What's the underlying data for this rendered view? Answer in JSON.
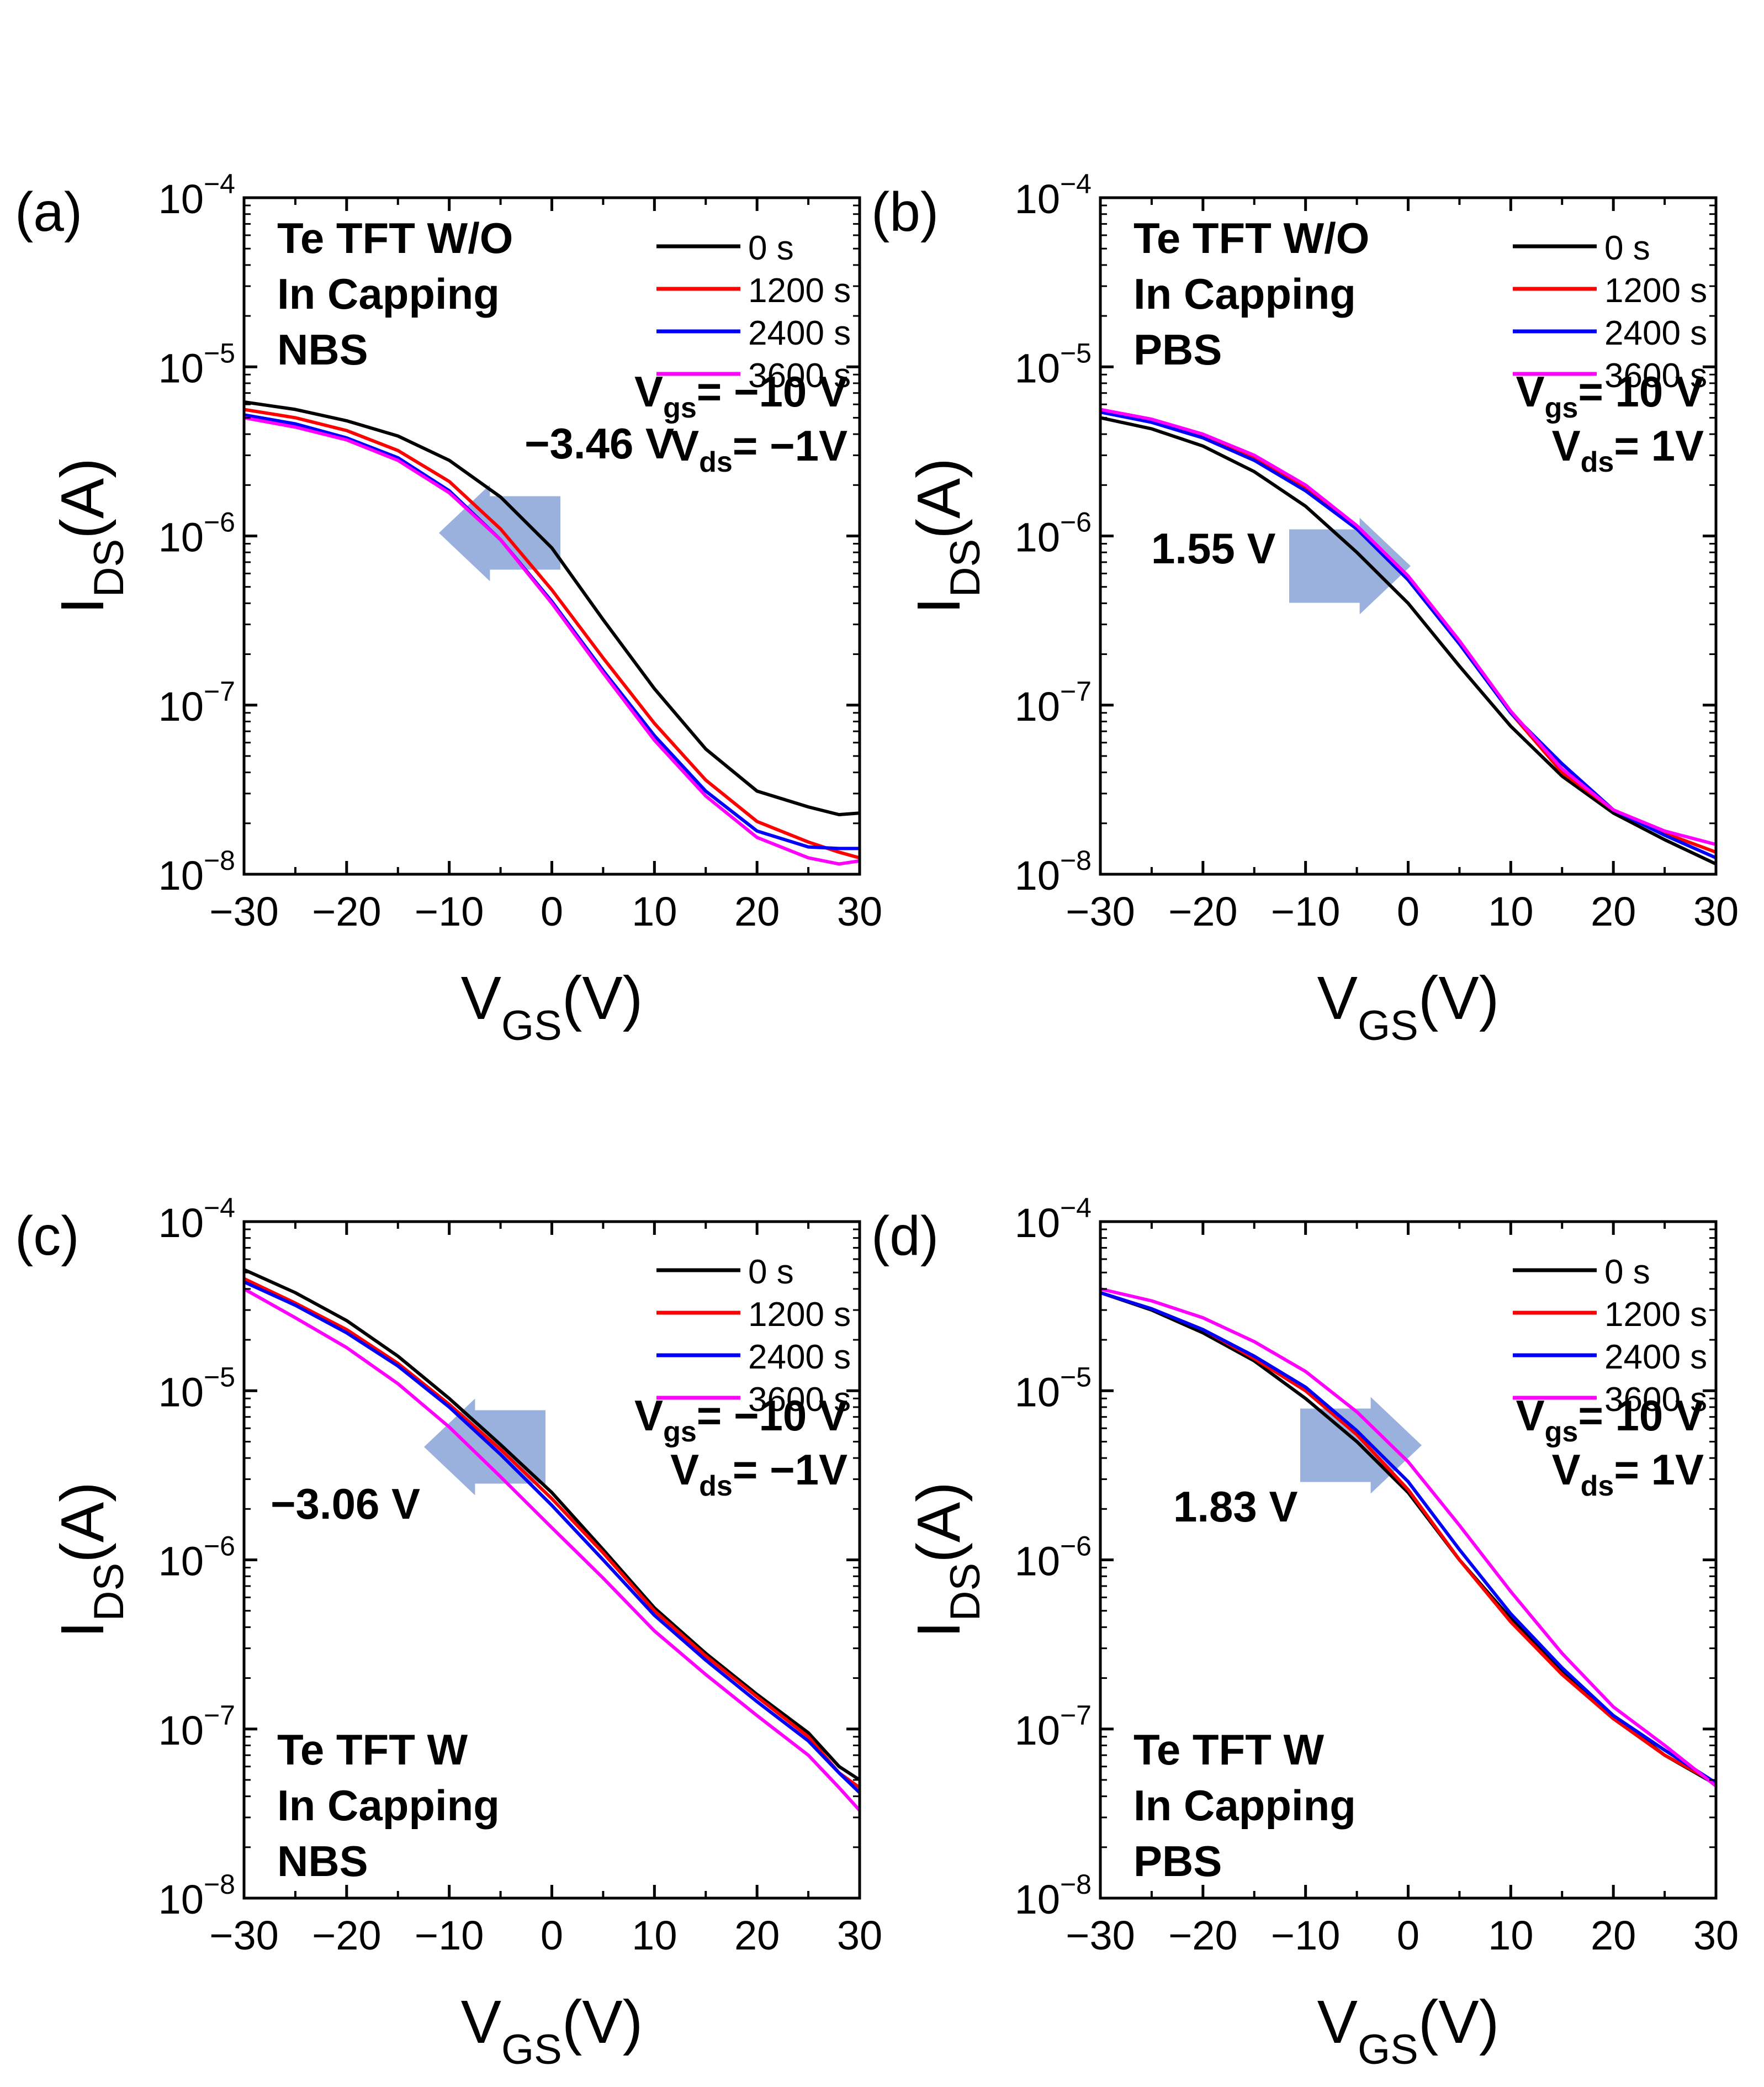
{
  "chart_data": [
    {
      "type": "line",
      "panel_label": "(a)",
      "xlabel": "V",
      "xlabel_sub": "GS",
      "xlabel_suffix": "(V)",
      "ylabel": "I",
      "ylabel_sub": "DS",
      "ylabel_suffix": "(A)",
      "xscale": "linear",
      "yscale": "log",
      "xlim": [
        -30,
        30
      ],
      "ylim": [
        1e-08,
        0.0001
      ],
      "xticks": [
        -30,
        -20,
        -10,
        0,
        10,
        20,
        30
      ],
      "xtick_labels": [
        "−30",
        "−20",
        "−10",
        "0",
        "10",
        "20",
        "30"
      ],
      "yticks": [
        1e-08,
        1e-07,
        1e-06,
        1e-05,
        0.0001
      ],
      "ytick_bases": [
        "10",
        "10",
        "10",
        "10",
        "10"
      ],
      "ytick_exps": [
        "−8",
        "−7",
        "−6",
        "−5",
        "−4"
      ],
      "title_lines": [
        "Te TFT W/O",
        "In Capping",
        "NBS"
      ],
      "title_position": "top-left",
      "bias": {
        "vgs_label": "V",
        "vgs_sub": "gs",
        "vgs_value": "= −10 V",
        "vds_label": "V",
        "vds_sub": "ds",
        "vds_value": "= −1V"
      },
      "legend_position": "top-right",
      "shift": {
        "label": "−3.46 V",
        "direction": "left",
        "label_position": "upper-right of arrow"
      },
      "series": [
        {
          "name": "0 s",
          "color": "#000000",
          "x": [
            -30,
            -25,
            -20,
            -15,
            -10,
            -5,
            0,
            5,
            10,
            15,
            20,
            25,
            28,
            30
          ],
          "y": [
            6.2e-06,
            5.6e-06,
            4.8e-06,
            3.9e-06,
            2.8e-06,
            1.7e-06,
            8.5e-07,
            3.2e-07,
            1.25e-07,
            5.5e-08,
            3.1e-08,
            2.5e-08,
            2.25e-08,
            2.3e-08
          ]
        },
        {
          "name": "1200 s",
          "color": "#ff0000",
          "x": [
            -30,
            -25,
            -20,
            -15,
            -10,
            -5,
            0,
            5,
            10,
            15,
            20,
            25,
            28,
            30
          ],
          "y": [
            5.6e-06,
            5e-06,
            4.2e-06,
            3.2e-06,
            2.1e-06,
            1.1e-06,
            4.8e-07,
            1.9e-07,
            7.8e-08,
            3.6e-08,
            2.05e-08,
            1.55e-08,
            1.35e-08,
            1.25e-08
          ]
        },
        {
          "name": "2400 s",
          "color": "#0000ff",
          "x": [
            -30,
            -25,
            -20,
            -15,
            -10,
            -5,
            0,
            5,
            10,
            15,
            20,
            25,
            28,
            30
          ],
          "y": [
            5.2e-06,
            4.6e-06,
            3.8e-06,
            2.9e-06,
            1.85e-06,
            9.5e-07,
            4.1e-07,
            1.6e-07,
            6.6e-08,
            3.1e-08,
            1.8e-08,
            1.45e-08,
            1.42e-08,
            1.42e-08
          ]
        },
        {
          "name": "3600 s",
          "color": "#ff00ff",
          "x": [
            -30,
            -25,
            -20,
            -15,
            -10,
            -5,
            0,
            5,
            10,
            15,
            20,
            25,
            28,
            30
          ],
          "y": [
            5e-06,
            4.4e-06,
            3.7e-06,
            2.8e-06,
            1.8e-06,
            9.5e-07,
            4e-07,
            1.55e-07,
            6.2e-08,
            2.9e-08,
            1.65e-08,
            1.25e-08,
            1.15e-08,
            1.2e-08
          ]
        }
      ]
    },
    {
      "type": "line",
      "panel_label": "(b)",
      "xlabel": "V",
      "xlabel_sub": "GS",
      "xlabel_suffix": "(V)",
      "ylabel": "I",
      "ylabel_sub": "DS",
      "ylabel_suffix": "(A)",
      "xscale": "linear",
      "yscale": "log",
      "xlim": [
        -30,
        30
      ],
      "ylim": [
        1e-08,
        0.0001
      ],
      "xticks": [
        -30,
        -20,
        -10,
        0,
        10,
        20,
        30
      ],
      "xtick_labels": [
        "−30",
        "−20",
        "−10",
        "0",
        "10",
        "20",
        "30"
      ],
      "yticks": [
        1e-08,
        1e-07,
        1e-06,
        1e-05,
        0.0001
      ],
      "ytick_bases": [
        "10",
        "10",
        "10",
        "10",
        "10"
      ],
      "ytick_exps": [
        "−8",
        "−7",
        "−6",
        "−5",
        "−4"
      ],
      "title_lines": [
        "Te TFT W/O",
        "In Capping",
        "PBS"
      ],
      "title_position": "top-left",
      "bias": {
        "vgs_label": "V",
        "vgs_sub": "gs",
        "vgs_value": "= 10 V",
        "vds_label": "V",
        "vds_sub": "ds",
        "vds_value": "= 1V"
      },
      "legend_position": "top-right",
      "shift": {
        "label": "1.55 V",
        "direction": "right",
        "label_position": "left of arrow"
      },
      "series": [
        {
          "name": "0 s",
          "color": "#000000",
          "x": [
            -30,
            -25,
            -20,
            -15,
            -10,
            -5,
            0,
            5,
            10,
            15,
            20,
            25,
            30
          ],
          "y": [
            5e-06,
            4.3e-06,
            3.4e-06,
            2.4e-06,
            1.5e-06,
            8e-07,
            4e-07,
            1.7e-07,
            7.5e-08,
            3.8e-08,
            2.3e-08,
            1.6e-08,
            1.15e-08
          ]
        },
        {
          "name": "1200 s",
          "color": "#ff0000",
          "x": [
            -30,
            -25,
            -20,
            -15,
            -10,
            -5,
            0,
            5,
            10,
            15,
            20,
            25,
            30
          ],
          "y": [
            5.5e-06,
            4.8e-06,
            3.9e-06,
            2.9e-06,
            1.9e-06,
            1.1e-06,
            5.5e-07,
            2.3e-07,
            9e-08,
            4e-08,
            2.4e-08,
            1.75e-08,
            1.35e-08
          ]
        },
        {
          "name": "2400 s",
          "color": "#0000ff",
          "x": [
            -30,
            -25,
            -20,
            -15,
            -10,
            -5,
            0,
            5,
            10,
            15,
            20,
            25,
            30
          ],
          "y": [
            5.4e-06,
            4.7e-06,
            3.8e-06,
            2.8e-06,
            1.85e-06,
            1.1e-06,
            5.5e-07,
            2.3e-07,
            9e-08,
            4.5e-08,
            2.4e-08,
            1.7e-08,
            1.25e-08
          ]
        },
        {
          "name": "3600 s",
          "color": "#ff00ff",
          "x": [
            -30,
            -25,
            -20,
            -15,
            -10,
            -5,
            0,
            5,
            10,
            15,
            20,
            25,
            30
          ],
          "y": [
            5.6e-06,
            4.9e-06,
            4e-06,
            3e-06,
            2e-06,
            1.15e-06,
            5.8e-07,
            2.4e-07,
            9.2e-08,
            4.2e-08,
            2.4e-08,
            1.8e-08,
            1.5e-08
          ]
        }
      ]
    },
    {
      "type": "line",
      "panel_label": "(c)",
      "xlabel": "V",
      "xlabel_sub": "GS",
      "xlabel_suffix": "(V)",
      "ylabel": "I",
      "ylabel_sub": "DS",
      "ylabel_suffix": "(A)",
      "xscale": "linear",
      "yscale": "log",
      "xlim": [
        -30,
        30
      ],
      "ylim": [
        1e-08,
        0.0001
      ],
      "xticks": [
        -30,
        -20,
        -10,
        0,
        10,
        20,
        30
      ],
      "xtick_labels": [
        "−30",
        "−20",
        "−10",
        "0",
        "10",
        "20",
        "30"
      ],
      "yticks": [
        1e-08,
        1e-07,
        1e-06,
        1e-05,
        0.0001
      ],
      "ytick_bases": [
        "10",
        "10",
        "10",
        "10",
        "10"
      ],
      "ytick_exps": [
        "−8",
        "−7",
        "−6",
        "−5",
        "−4"
      ],
      "title_lines": [
        "Te TFT W",
        "In Capping",
        "NBS"
      ],
      "title_position": "bottom-left",
      "bias": {
        "vgs_label": "V",
        "vgs_sub": "gs",
        "vgs_value": "= −10 V",
        "vds_label": "V",
        "vds_sub": "ds",
        "vds_value": "= −1V"
      },
      "legend_position": "top-right",
      "shift": {
        "label": "−3.06 V",
        "direction": "left",
        "label_position": "lower-left of arrow"
      },
      "series": [
        {
          "name": "0 s",
          "color": "#000000",
          "x": [
            -30,
            -25,
            -20,
            -15,
            -10,
            -5,
            0,
            5,
            10,
            15,
            20,
            25,
            28,
            30
          ],
          "y": [
            5.2e-05,
            3.8e-05,
            2.6e-05,
            1.6e-05,
            9e-06,
            4.8e-06,
            2.5e-06,
            1.15e-06,
            5.2e-07,
            2.8e-07,
            1.6e-07,
            9.5e-08,
            6e-08,
            5e-08
          ]
        },
        {
          "name": "1200 s",
          "color": "#ff0000",
          "x": [
            -30,
            -25,
            -20,
            -15,
            -10,
            -5,
            0,
            5,
            10,
            15,
            20,
            25,
            28,
            30
          ],
          "y": [
            4.6e-05,
            3.3e-05,
            2.3e-05,
            1.45e-05,
            8.3e-06,
            4.5e-06,
            2.3e-06,
            1.1e-06,
            5e-07,
            2.7e-07,
            1.55e-07,
            9e-08,
            5.5e-08,
            4.5e-08
          ]
        },
        {
          "name": "2400 s",
          "color": "#0000ff",
          "x": [
            -30,
            -25,
            -20,
            -15,
            -10,
            -5,
            0,
            5,
            10,
            15,
            20,
            25,
            28,
            30
          ],
          "y": [
            4.4e-05,
            3.2e-05,
            2.2e-05,
            1.4e-05,
            8e-06,
            4.2e-06,
            2.1e-06,
            1e-06,
            4.7e-07,
            2.55e-07,
            1.45e-07,
            8.5e-08,
            5.5e-08,
            4.2e-08
          ]
        },
        {
          "name": "3600 s",
          "color": "#ff00ff",
          "x": [
            -30,
            -25,
            -20,
            -15,
            -10,
            -5,
            0,
            5,
            10,
            15,
            20,
            25,
            28,
            30
          ],
          "y": [
            4e-05,
            2.7e-05,
            1.8e-05,
            1.1e-05,
            6.1e-06,
            3.1e-06,
            1.55e-06,
            7.8e-07,
            3.8e-07,
            2.1e-07,
            1.2e-07,
            7e-08,
            4.5e-08,
            3.3e-08
          ]
        }
      ]
    },
    {
      "type": "line",
      "panel_label": "(d)",
      "xlabel": "V",
      "xlabel_sub": "GS",
      "xlabel_suffix": "(V)",
      "ylabel": "I",
      "ylabel_sub": "DS",
      "ylabel_suffix": "(A)",
      "xscale": "linear",
      "yscale": "log",
      "xlim": [
        -30,
        30
      ],
      "ylim": [
        1e-08,
        0.0001
      ],
      "xticks": [
        -30,
        -20,
        -10,
        0,
        10,
        20,
        30
      ],
      "xtick_labels": [
        "−30",
        "−20",
        "−10",
        "0",
        "10",
        "20",
        "30"
      ],
      "yticks": [
        1e-08,
        1e-07,
        1e-06,
        1e-05,
        0.0001
      ],
      "ytick_bases": [
        "10",
        "10",
        "10",
        "10",
        "10"
      ],
      "ytick_exps": [
        "−8",
        "−7",
        "−6",
        "−5",
        "−4"
      ],
      "title_lines": [
        "Te TFT W",
        "In Capping",
        "PBS"
      ],
      "title_position": "bottom-left",
      "bias": {
        "vgs_label": "V",
        "vgs_sub": "gs",
        "vgs_value": "= 10 V",
        "vds_label": "V",
        "vds_sub": "ds",
        "vds_value": "= 1V"
      },
      "legend_position": "top-right",
      "shift": {
        "label": "1.83 V",
        "direction": "right",
        "label_position": "lower-right of arrow"
      },
      "series": [
        {
          "name": "0 s",
          "color": "#000000",
          "x": [
            -30,
            -25,
            -20,
            -15,
            -10,
            -5,
            0,
            5,
            10,
            15,
            20,
            25,
            30
          ],
          "y": [
            3.8e-05,
            3e-05,
            2.2e-05,
            1.5e-05,
            9e-06,
            5e-06,
            2.5e-06,
            1e-06,
            4.5e-07,
            2.2e-07,
            1.2e-07,
            7e-08,
            4.7e-08
          ]
        },
        {
          "name": "1200 s",
          "color": "#ff0000",
          "x": [
            -30,
            -25,
            -20,
            -15,
            -10,
            -5,
            0,
            5,
            10,
            15,
            20,
            25,
            30
          ],
          "y": [
            3.8e-05,
            3.05e-05,
            2.3e-05,
            1.55e-05,
            1e-05,
            5.5e-06,
            2.6e-06,
            1e-06,
            4.3e-07,
            2.1e-07,
            1.15e-07,
            7e-08,
            4.8e-08
          ]
        },
        {
          "name": "2400 s",
          "color": "#0000ff",
          "x": [
            -30,
            -25,
            -20,
            -15,
            -10,
            -5,
            0,
            5,
            10,
            15,
            20,
            25,
            30
          ],
          "y": [
            3.8e-05,
            3.05e-05,
            2.3e-05,
            1.6e-05,
            1.05e-05,
            5.8e-06,
            2.9e-06,
            1.15e-06,
            4.8e-07,
            2.3e-07,
            1.2e-07,
            7.5e-08,
            4.8e-08
          ]
        },
        {
          "name": "3600 s",
          "color": "#ff00ff",
          "x": [
            -30,
            -25,
            -20,
            -15,
            -10,
            -5,
            0,
            5,
            10,
            15,
            20,
            25,
            30
          ],
          "y": [
            4e-05,
            3.4e-05,
            2.7e-05,
            1.95e-05,
            1.3e-05,
            7.5e-06,
            3.8e-06,
            1.6e-06,
            6.5e-07,
            2.8e-07,
            1.35e-07,
            8e-08,
            4.6e-08
          ]
        }
      ]
    }
  ]
}
